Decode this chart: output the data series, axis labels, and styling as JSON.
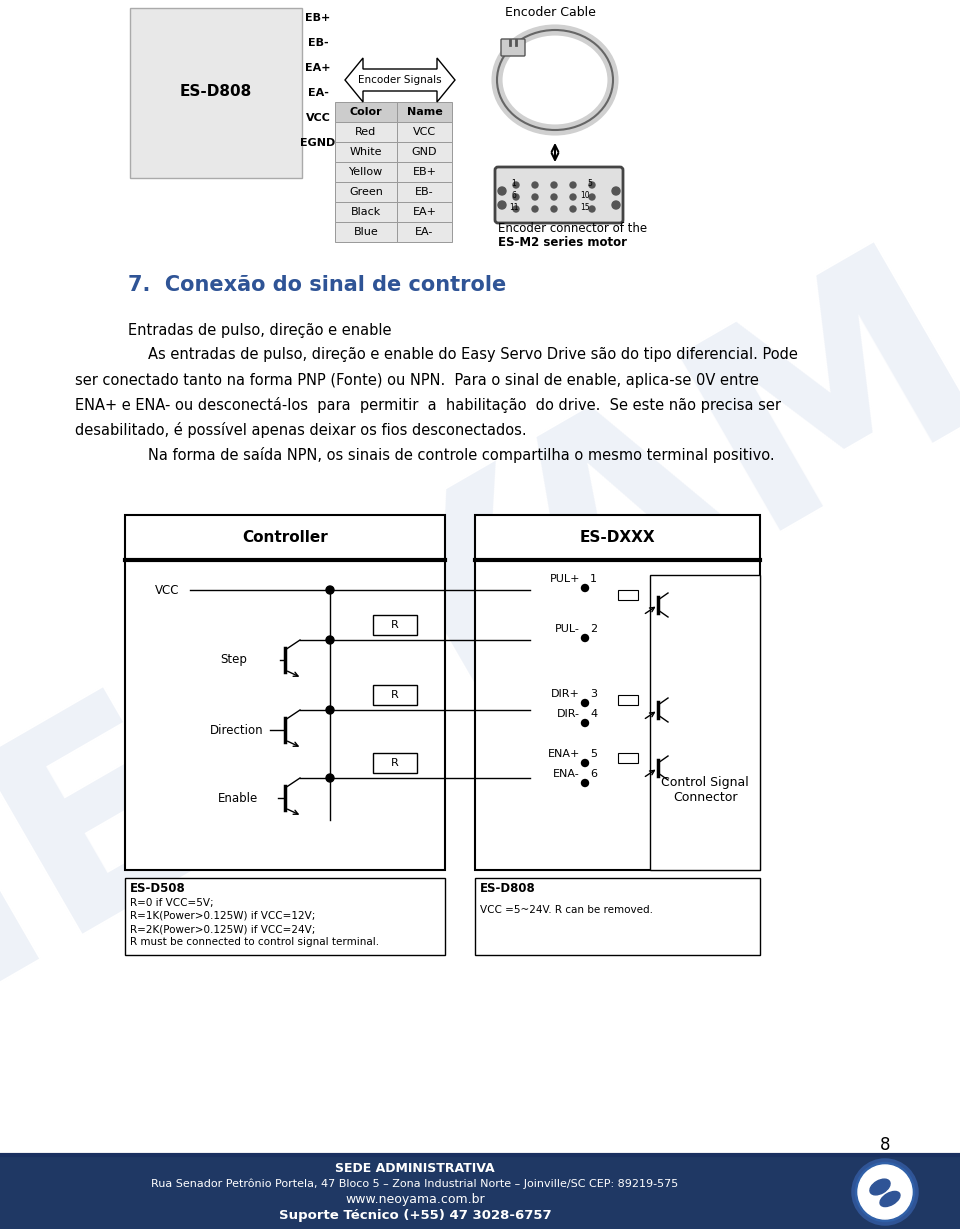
{
  "page_bg": "#ffffff",
  "section_title": "7.  Conexão do sinal de controle",
  "section_title_color": "#2F5496",
  "section_title_fontsize": 15,
  "footer_bg": "#1F3864",
  "footer_text_bold": "SEDE ADMINISTRATIVA",
  "footer_text_line2": "Rua Senador Petrônio Portela, 47 Bloco 5 – Zona Industrial Norte – Joinville/SC CEP: 89219-575",
  "footer_text_line3": "www.neoyama.com.br",
  "footer_text_line4": "Suporte Técnico (+55) 47 3028-6757",
  "page_number": "8",
  "watermark_text": "NEOYAMA",
  "watermark_color": "#c8d4e8",
  "watermark_alpha": 0.3,
  "gray_box_color": "#e8e8e8",
  "table_header_color": "#cccccc",
  "table_row_color": "#e8e8e8"
}
